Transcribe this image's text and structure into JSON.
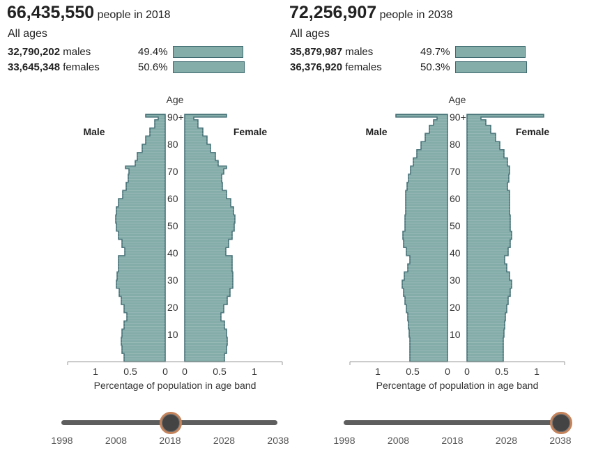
{
  "colors": {
    "fill": "#84aca9",
    "stroke": "#3d6a70",
    "axis": "#999999",
    "track": "#5e5e5e",
    "knob_ring": "#c4835b"
  },
  "panels": [
    {
      "total": "66,435,550",
      "total_suffix": "people in 2018",
      "ages_label": "All ages",
      "male_count": "32,790,202",
      "male_word": "males",
      "male_pct": "49.4%",
      "male_share": 0.494,
      "female_count": "33,645,348",
      "female_word": "females",
      "female_pct": "50.6%",
      "female_share": 0.506,
      "slider": {
        "years": [
          "1998",
          "2008",
          "2018",
          "2028",
          "2038"
        ],
        "selected": "2018"
      }
    },
    {
      "total": "72,256,907",
      "total_suffix": "people in 2038",
      "ages_label": "All ages",
      "male_count": "35,879,987",
      "male_word": "males",
      "male_pct": "49.7%",
      "male_share": 0.497,
      "female_count": "36,376,920",
      "female_word": "females",
      "female_pct": "50.3%",
      "female_share": 0.503,
      "slider": {
        "years": [
          "1998",
          "2008",
          "2018",
          "2028",
          "2038"
        ],
        "selected": "2038"
      }
    }
  ],
  "chart_data": [
    {
      "type": "bar",
      "orientation": "horizontal-pyramid",
      "title": "",
      "ylabel": "Age",
      "xlabel": "Percentage of population in age band",
      "left_label": "Male",
      "right_label": "Female",
      "xlim": [
        0,
        1.5
      ],
      "x_tick_labels": [
        "1",
        "0.5",
        "0",
        "0",
        "0.5",
        "1"
      ],
      "y_tick_labels": [
        "10",
        "20",
        "30",
        "40",
        "50",
        "60",
        "70",
        "80",
        "90+"
      ],
      "age_points": [
        0,
        3,
        6,
        9,
        12,
        15,
        18,
        21,
        24,
        27,
        30,
        33,
        36,
        39,
        42,
        45,
        48,
        51,
        54,
        57,
        60,
        63,
        66,
        69,
        71,
        72,
        74,
        77,
        80,
        83,
        86,
        89,
        90
      ],
      "series": [
        {
          "name": "Male",
          "values": [
            0.59,
            0.62,
            0.63,
            0.62,
            0.59,
            0.55,
            0.59,
            0.63,
            0.66,
            0.7,
            0.69,
            0.67,
            0.67,
            0.58,
            0.62,
            0.67,
            0.7,
            0.71,
            0.7,
            0.67,
            0.61,
            0.56,
            0.53,
            0.52,
            0.57,
            0.43,
            0.4,
            0.33,
            0.28,
            0.22,
            0.15,
            0.1,
            0.28
          ]
        },
        {
          "name": "Female",
          "values": [
            0.57,
            0.6,
            0.61,
            0.6,
            0.57,
            0.52,
            0.56,
            0.61,
            0.65,
            0.69,
            0.69,
            0.68,
            0.68,
            0.59,
            0.63,
            0.68,
            0.71,
            0.72,
            0.7,
            0.66,
            0.6,
            0.54,
            0.53,
            0.56,
            0.6,
            0.48,
            0.44,
            0.37,
            0.32,
            0.26,
            0.19,
            0.13,
            0.6
          ]
        }
      ]
    },
    {
      "type": "bar",
      "orientation": "horizontal-pyramid",
      "title": "",
      "ylabel": "Age",
      "xlabel": "Percentage of population in age band",
      "left_label": "Male",
      "right_label": "Female",
      "xlim": [
        0,
        1.5
      ],
      "x_tick_labels": [
        "1",
        "0.5",
        "0",
        "0",
        "0.5",
        "1"
      ],
      "y_tick_labels": [
        "10",
        "20",
        "30",
        "40",
        "50",
        "60",
        "70",
        "80",
        "90+"
      ],
      "age_points": [
        0,
        3,
        6,
        9,
        12,
        15,
        18,
        21,
        24,
        27,
        30,
        33,
        36,
        39,
        42,
        45,
        48,
        51,
        54,
        57,
        60,
        63,
        66,
        69,
        72,
        75,
        78,
        81,
        84,
        87,
        89,
        90
      ],
      "series": [
        {
          "name": "Male",
          "values": [
            0.54,
            0.54,
            0.54,
            0.55,
            0.56,
            0.57,
            0.59,
            0.61,
            0.63,
            0.65,
            0.62,
            0.57,
            0.54,
            0.59,
            0.63,
            0.64,
            0.61,
            0.61,
            0.6,
            0.6,
            0.6,
            0.58,
            0.56,
            0.53,
            0.49,
            0.44,
            0.38,
            0.32,
            0.26,
            0.2,
            0.15,
            0.74
          ]
        },
        {
          "name": "Female",
          "values": [
            0.52,
            0.52,
            0.52,
            0.53,
            0.54,
            0.55,
            0.57,
            0.59,
            0.62,
            0.64,
            0.61,
            0.57,
            0.54,
            0.59,
            0.62,
            0.64,
            0.62,
            0.62,
            0.61,
            0.61,
            0.61,
            0.58,
            0.6,
            0.61,
            0.58,
            0.53,
            0.47,
            0.41,
            0.34,
            0.27,
            0.2,
            1.1
          ]
        }
      ]
    }
  ]
}
